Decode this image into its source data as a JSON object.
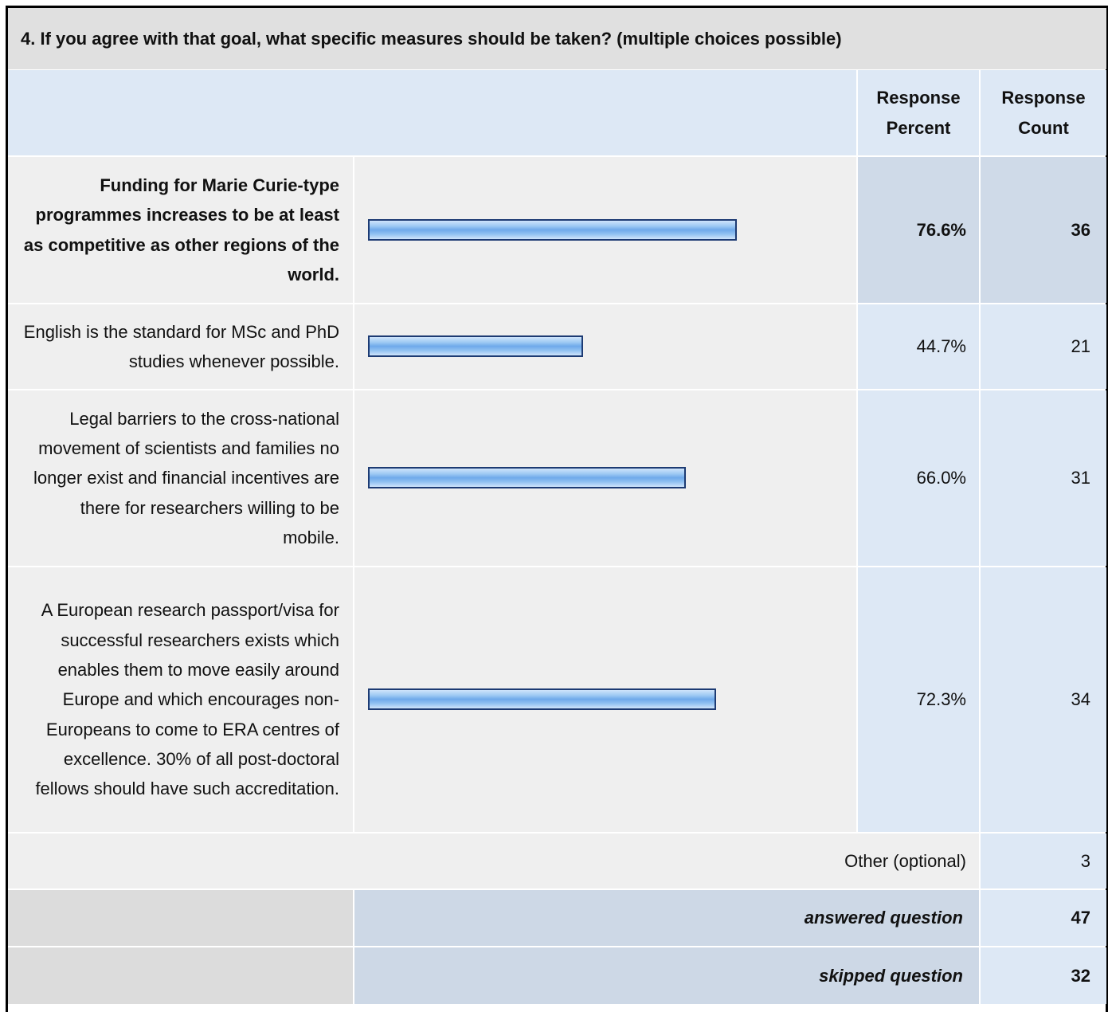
{
  "title": "4. If you agree with that goal, what specific measures should be taken? (multiple choices possible)",
  "header": {
    "percent": "Response Percent",
    "count": "Response Count"
  },
  "rows": [
    {
      "label": "Funding for Marie Curie-type programmes increases to be at least as competitive as other regions of the world.",
      "percent": {
        "value": 76.6,
        "label": "76.6%"
      },
      "count": 36
    },
    {
      "label": "English is the standard for MSc and PhD studies whenever possible.",
      "percent": {
        "value": 44.7,
        "label": "44.7%"
      },
      "count": 21
    },
    {
      "label": "Legal barriers to the cross-national movement of scientists and families no longer exist and financial incentives are there for researchers willing to be mobile.",
      "percent": {
        "value": 66.0,
        "label": "66.0%"
      },
      "count": 31
    },
    {
      "label": "A European research passport/visa for successful researchers exists which enables them to move easily around Europe and which encourages non-Europeans to come to ERA centres of excellence. 30% of all post-doctoral fellows should have such accreditation.",
      "percent": {
        "value": 72.3,
        "label": "72.3%"
      },
      "count": 34
    }
  ],
  "other": {
    "label": "Other (optional)",
    "count": 3
  },
  "answered": {
    "label": "answered question",
    "count": 47
  },
  "skipped": {
    "label": "skipped question",
    "count": 32
  }
}
